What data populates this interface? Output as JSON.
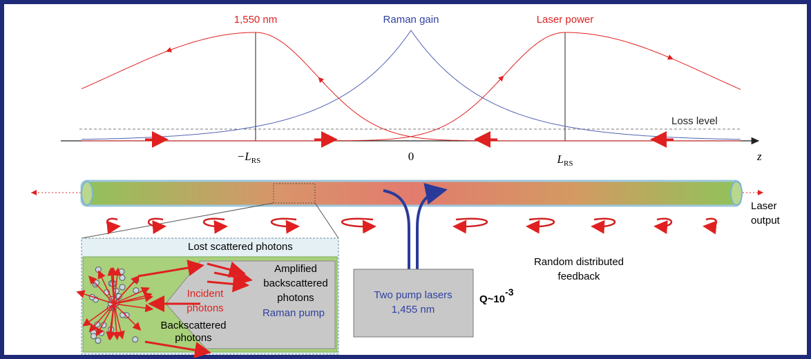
{
  "plot": {
    "wavelength_label": "1,550 nm",
    "gain_label": "Raman gain",
    "power_label": "Laser power",
    "loss_label": "Loss level",
    "axis": {
      "neg": {
        "base": "−L",
        "sub": "RS"
      },
      "zero": "0",
      "pos": {
        "base": "L",
        "sub": "RS"
      },
      "z": "z"
    }
  },
  "fiber": {
    "output": [
      "Laser",
      "output"
    ]
  },
  "inset": {
    "lost": "Lost scattered photons",
    "amplified": [
      "Amplified",
      "backscattered",
      "photons"
    ],
    "incident": [
      "Incident",
      "photons"
    ],
    "backscattered": [
      "Backscattered",
      "photons"
    ],
    "pump": "Raman pump"
  },
  "pump_box": [
    "Two pump lasers",
    "1,455 nm"
  ],
  "feedback": [
    "Random distributed",
    "feedback"
  ],
  "q": {
    "base": "Q~10",
    "sup": "-3"
  }
}
